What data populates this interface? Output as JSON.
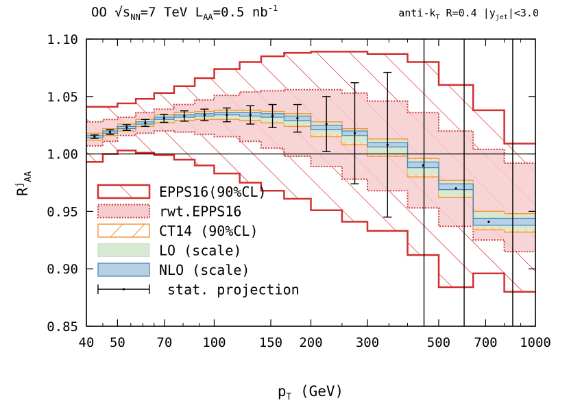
{
  "header": {
    "left_html": "OO √s<tspan baseline-shift='sub' font-size='12'>NN</tspan>=7 TeV L<tspan baseline-shift='sub' font-size='12'>AA</tspan>=0.5 nb<tspan baseline-shift='super' font-size='12'>-1</tspan>",
    "left_parts": [
      "OO ",
      "√s",
      "NN",
      "=7 TeV L",
      "AA",
      "=0.5 nb",
      "-1"
    ],
    "right_parts": [
      "anti-k",
      "T",
      " R=0.4 |y",
      "jet",
      "|<3.0"
    ]
  },
  "chart_data": {
    "type": "step",
    "xlabel_parts": [
      "p",
      "T",
      " (GeV)"
    ],
    "ylabel_parts": [
      "R",
      "j",
      "AA"
    ],
    "x_scale": "log",
    "xlim": [
      40,
      1000
    ],
    "ylim": [
      0.85,
      1.1
    ],
    "x_ticks": [
      40,
      50,
      70,
      100,
      150,
      200,
      300,
      500,
      700,
      1000
    ],
    "x_tick_labels": [
      "40",
      "50",
      "70",
      "100",
      "150",
      "200",
      "300",
      "500",
      "700",
      "1000"
    ],
    "y_ticks": [
      0.85,
      0.9,
      0.95,
      1.0,
      1.05,
      1.1
    ],
    "y_tick_labels": [
      "0.85",
      "0.90",
      "0.95",
      "1.00",
      "1.05",
      "1.10"
    ],
    "reference_line": 1.0,
    "bin_edges": [
      40,
      45,
      50,
      57,
      65,
      75,
      87,
      100,
      120,
      140,
      165,
      200,
      250,
      300,
      400,
      500,
      640,
      800,
      1000
    ],
    "vertical_lines": [
      450,
      600,
      850
    ],
    "series": [
      {
        "name": "EPPS16(90%CL)",
        "style": "hatched-red",
        "upper": [
          1.041,
          1.041,
          1.044,
          1.048,
          1.053,
          1.059,
          1.066,
          1.074,
          1.08,
          1.085,
          1.088,
          1.089,
          1.089,
          1.087,
          1.08,
          1.06,
          1.038,
          1.009
        ],
        "lower": [
          0.993,
          1.0,
          1.003,
          1.001,
          0.999,
          0.995,
          0.99,
          0.983,
          0.975,
          0.968,
          0.961,
          0.951,
          0.941,
          0.933,
          0.912,
          0.884,
          0.896,
          0.88
        ]
      },
      {
        "name": "rwt.EPPS16",
        "style": "pink-band",
        "upper": [
          1.028,
          1.03,
          1.032,
          1.036,
          1.039,
          1.043,
          1.047,
          1.051,
          1.054,
          1.055,
          1.056,
          1.056,
          1.053,
          1.046,
          1.036,
          1.02,
          1.004,
          0.992
        ],
        "lower": [
          1.007,
          1.011,
          1.016,
          1.018,
          1.02,
          1.019,
          1.017,
          1.015,
          1.011,
          1.005,
          0.998,
          0.989,
          0.978,
          0.968,
          0.953,
          0.937,
          0.925,
          0.915
        ]
      },
      {
        "name": "CT14 (90%CL)",
        "style": "orange-band",
        "upper": [
          1.018,
          1.022,
          1.026,
          1.03,
          1.034,
          1.036,
          1.037,
          1.038,
          1.038,
          1.037,
          1.035,
          1.028,
          1.022,
          1.013,
          0.996,
          0.977,
          0.95,
          0.948
        ],
        "lower": [
          1.012,
          1.016,
          1.02,
          1.024,
          1.027,
          1.029,
          1.03,
          1.03,
          1.029,
          1.027,
          1.024,
          1.015,
          1.008,
          0.998,
          0.98,
          0.962,
          0.934,
          0.932
        ]
      },
      {
        "name": "LO (scale)",
        "style": "green-band",
        "upper": [
          1.017,
          1.021,
          1.025,
          1.029,
          1.033,
          1.035,
          1.036,
          1.037,
          1.037,
          1.036,
          1.034,
          1.027,
          1.021,
          1.012,
          0.995,
          0.976,
          0.949,
          0.947
        ],
        "lower": [
          1.013,
          1.017,
          1.021,
          1.025,
          1.028,
          1.03,
          1.031,
          1.031,
          1.03,
          1.028,
          1.025,
          1.017,
          1.01,
          1.0,
          0.982,
          0.963,
          0.936,
          0.934
        ]
      },
      {
        "name": "NLO (scale)",
        "style": "blue-band",
        "upper": [
          1.016,
          1.02,
          1.024,
          1.028,
          1.032,
          1.034,
          1.035,
          1.036,
          1.036,
          1.035,
          1.033,
          1.025,
          1.02,
          1.01,
          0.993,
          0.974,
          0.944,
          0.944
        ],
        "lower": [
          1.014,
          1.018,
          1.022,
          1.026,
          1.03,
          1.032,
          1.033,
          1.034,
          1.033,
          1.032,
          1.029,
          1.021,
          1.016,
          1.006,
          0.988,
          0.969,
          0.938,
          0.938
        ]
      },
      {
        "name": "stat. projection",
        "style": "errorbars",
        "points": [
          {
            "x": 42.4,
            "y": 1.015,
            "err": 0.0015
          },
          {
            "x": 47.4,
            "y": 1.019,
            "err": 0.002
          },
          {
            "x": 53.4,
            "y": 1.023,
            "err": 0.0025
          },
          {
            "x": 61.0,
            "y": 1.027,
            "err": 0.003
          },
          {
            "x": 69.8,
            "y": 1.031,
            "err": 0.0035
          },
          {
            "x": 80.7,
            "y": 1.033,
            "err": 0.0045
          },
          {
            "x": 93.3,
            "y": 1.034,
            "err": 0.005
          },
          {
            "x": 109.5,
            "y": 1.034,
            "err": 0.006
          },
          {
            "x": 129.6,
            "y": 1.034,
            "err": 0.008
          },
          {
            "x": 151.9,
            "y": 1.033,
            "err": 0.01
          },
          {
            "x": 181.6,
            "y": 1.031,
            "err": 0.012
          },
          {
            "x": 223.6,
            "y": 1.026,
            "err": 0.024
          },
          {
            "x": 273.9,
            "y": 1.018,
            "err": 0.044
          },
          {
            "x": 346.4,
            "y": 1.008,
            "err": 0.063
          },
          {
            "x": 447.2,
            "y": 0.99,
            "err": 0.0
          },
          {
            "x": 565.7,
            "y": 0.97,
            "err": 0.0
          },
          {
            "x": 715.5,
            "y": 0.941,
            "err": 0.0
          }
        ]
      }
    ],
    "legend": {
      "position": "lower-left",
      "entries": [
        "EPPS16(90%CL)",
        "rwt.EPPS16",
        "CT14 (90%CL)",
        "LO (scale)",
        "NLO (scale)",
        "stat. projection"
      ]
    }
  },
  "colors": {
    "epps": "#d32f2f",
    "rwt_fill": "#f6cccf",
    "rwt_line": "#d13a3a",
    "ct14": "#f29a3b",
    "lo_fill": "#d6ead2",
    "nlo_fill": "#b7d0e6",
    "nlo_line": "#4682b4"
  }
}
